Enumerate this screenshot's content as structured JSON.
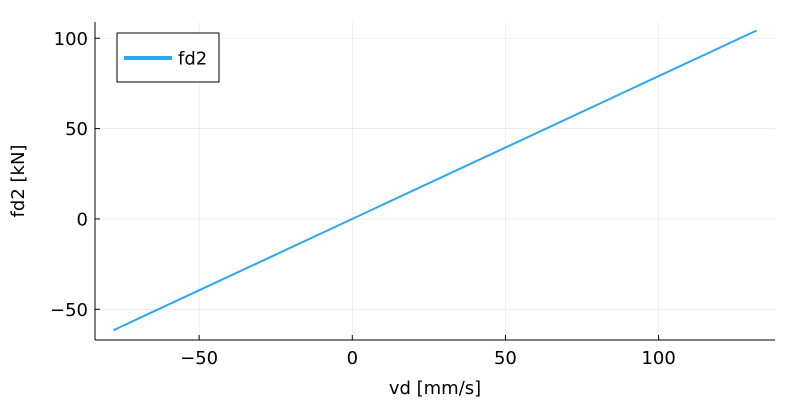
{
  "chart_data": {
    "type": "line",
    "title": "",
    "xlabel": "vd [mm/s]",
    "ylabel": "fd2 [kN]",
    "xlim": [
      -84,
      138
    ],
    "ylim": [
      -67,
      109
    ],
    "grid": true,
    "legend_position": "top-left",
    "x_ticks": [
      {
        "value": -50,
        "label": "−50"
      },
      {
        "value": 0,
        "label": "0"
      },
      {
        "value": 50,
        "label": "50"
      },
      {
        "value": 100,
        "label": "100"
      }
    ],
    "y_ticks": [
      {
        "value": -50,
        "label": "−50"
      },
      {
        "value": 0,
        "label": "0"
      },
      {
        "value": 50,
        "label": "50"
      },
      {
        "value": 100,
        "label": "100"
      }
    ],
    "series": [
      {
        "name": "fd2",
        "color": "#2fa7ee",
        "x": [
          -78,
          132
        ],
        "y": [
          -61.6,
          104.3
        ]
      }
    ]
  }
}
